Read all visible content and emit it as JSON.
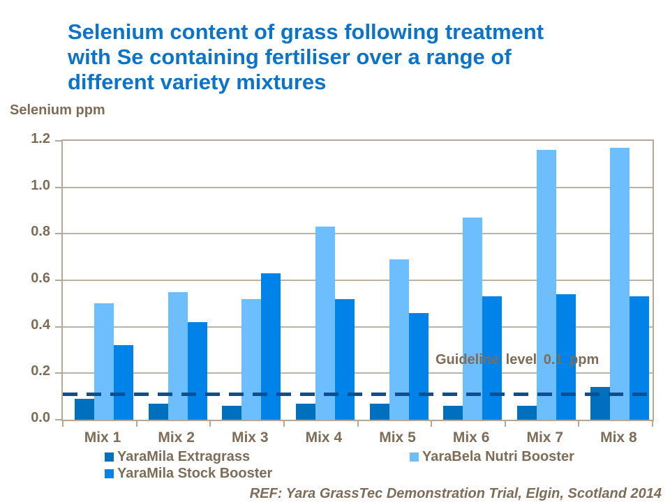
{
  "page": {
    "title_lines": [
      "Selenium content of grass following treatment",
      "with Se containing fertiliser over a range of",
      "different variety mixtures"
    ],
    "footer": "REF: Yara GrassTec Demonstration Trial, Elgin, Scotland 2014"
  },
  "colors": {
    "title_blue": "#0d73c7",
    "text_brown": "#7d6c57",
    "axis_frame": "#b3a797",
    "gridline": "#bcb2a4",
    "guideline_dash": "#0f4f8f",
    "extragrass": "#0070be",
    "nutri_booster": "#6dbefc",
    "stock_booster": "#0083e8"
  },
  "chart_data": {
    "type": "bar",
    "title": "Selenium content of grass following treatment with Se containing fertiliser over a range of different variety mixtures",
    "xlabel": "",
    "ylabel": "Selenium ppm",
    "ylim": [
      0,
      1.2
    ],
    "ytick_step": 0.2,
    "yticks": [
      "0.0",
      "0.2",
      "0.4",
      "0.6",
      "0.8",
      "1.0",
      "1.2"
    ],
    "grid": true,
    "legend_position": "bottom",
    "categories": [
      "Mix 1",
      "Mix 2",
      "Mix 3",
      "Mix 4",
      "Mix 5",
      "Mix 6",
      "Mix 7",
      "Mix 8"
    ],
    "series": [
      {
        "name": "YaraMila Extragrass",
        "color": "#0070be",
        "values": [
          0.09,
          0.07,
          0.06,
          0.07,
          0.07,
          0.06,
          0.06,
          0.14
        ]
      },
      {
        "name": "YaraBela Nutri Booster",
        "color": "#6dbefc",
        "values": [
          0.5,
          0.55,
          0.52,
          0.83,
          0.69,
          0.87,
          1.16,
          1.17
        ]
      },
      {
        "name": "YaraMila Stock Booster",
        "color": "#0083e8",
        "values": [
          0.32,
          0.42,
          0.63,
          0.52,
          0.46,
          0.53,
          0.54,
          0.53
        ]
      }
    ],
    "guideline": {
      "value": 0.11,
      "label": "Guideline level 0.1 ppm"
    }
  }
}
